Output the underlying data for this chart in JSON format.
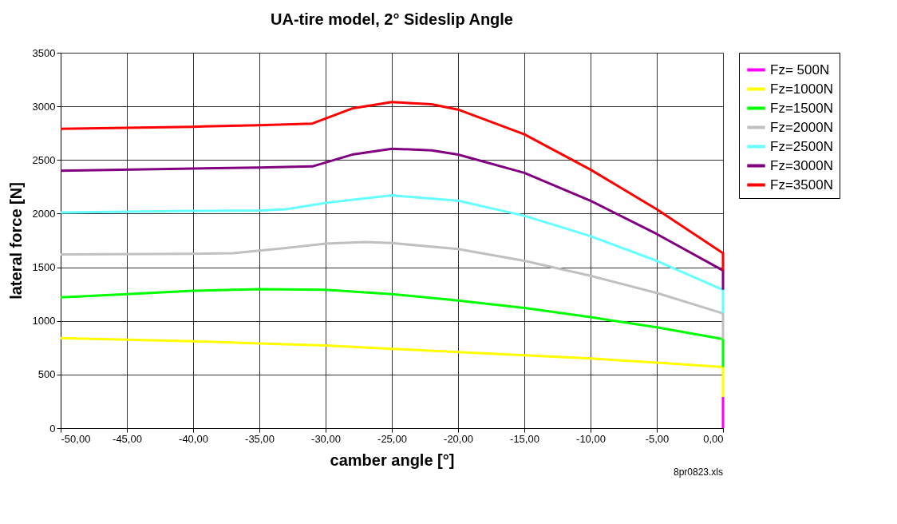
{
  "chart_data": {
    "type": "line",
    "title": "UA-tire model, 2° Sideslip Angle",
    "xlabel": "camber angle [°]",
    "ylabel": "lateral force [N]",
    "xlim": [
      -50,
      0
    ],
    "ylim": [
      0,
      3500
    ],
    "xticks": [
      {
        "value": -50,
        "label": "-50,00"
      },
      {
        "value": -45,
        "label": "-45,00"
      },
      {
        "value": -40,
        "label": "-40,00"
      },
      {
        "value": -35,
        "label": "-35,00"
      },
      {
        "value": -30,
        "label": "-30,00"
      },
      {
        "value": -25,
        "label": "-25,00"
      },
      {
        "value": -20,
        "label": "-20,00"
      },
      {
        "value": -15,
        "label": "-15,00"
      },
      {
        "value": -10,
        "label": "-10,00"
      },
      {
        "value": -5,
        "label": "-5,00"
      },
      {
        "value": 0,
        "label": "0,00"
      }
    ],
    "yticks": [
      0,
      500,
      1000,
      1500,
      2000,
      2500,
      3000,
      3500
    ],
    "grid": true,
    "legend": "right",
    "line_style": "solid",
    "marker": "none",
    "annotations": [
      "8pr0823.xls"
    ],
    "series": [
      {
        "name": "Fz= 500N",
        "color": "#ff00ff",
        "x": [
          0,
          0
        ],
        "values": [
          290,
          0
        ]
      },
      {
        "name": "Fz=1000N",
        "color": "#ffff00",
        "x": [
          -50,
          -40,
          -35,
          -30,
          -25,
          -20,
          -15,
          -10,
          -5,
          0,
          0
        ],
        "values": [
          840,
          810,
          790,
          770,
          740,
          710,
          680,
          650,
          610,
          570,
          290
        ]
      },
      {
        "name": "Fz=1500N",
        "color": "#00ff00",
        "x": [
          -50,
          -45,
          -40,
          -35,
          -30,
          -25,
          -20,
          -15,
          -10,
          -5,
          0,
          0
        ],
        "values": [
          1220,
          1250,
          1280,
          1295,
          1290,
          1250,
          1190,
          1120,
          1035,
          940,
          830,
          570
        ]
      },
      {
        "name": "Fz=2000N",
        "color": "#c0c0c0",
        "x": [
          -50,
          -40,
          -37,
          -33,
          -30,
          -27,
          -25,
          -20,
          -15,
          -10,
          -5,
          0,
          0
        ],
        "values": [
          1620,
          1625,
          1630,
          1680,
          1720,
          1735,
          1725,
          1670,
          1560,
          1420,
          1260,
          1070,
          830
        ]
      },
      {
        "name": "Fz=2500N",
        "color": "#66ffff",
        "x": [
          -50,
          -40,
          -35,
          -33,
          -30,
          -25,
          -20,
          -15,
          -10,
          -5,
          0,
          0
        ],
        "values": [
          2010,
          2025,
          2030,
          2040,
          2100,
          2170,
          2120,
          1980,
          1790,
          1560,
          1290,
          1070
        ]
      },
      {
        "name": "Fz=3000N",
        "color": "#800080",
        "x": [
          -50,
          -40,
          -35,
          -31,
          -28,
          -25,
          -22,
          -20,
          -15,
          -10,
          -5,
          0,
          0
        ],
        "values": [
          2400,
          2420,
          2430,
          2440,
          2550,
          2605,
          2590,
          2550,
          2380,
          2120,
          1810,
          1470,
          1290
        ]
      },
      {
        "name": "Fz=3500N",
        "color": "#ff0000",
        "x": [
          -50,
          -45,
          -40,
          -35,
          -31,
          -28,
          -25,
          -22,
          -20,
          -15,
          -10,
          -5,
          0,
          0
        ],
        "values": [
          2790,
          2800,
          2810,
          2825,
          2840,
          2980,
          3040,
          3020,
          2970,
          2740,
          2410,
          2040,
          1630,
          1470
        ]
      }
    ]
  }
}
